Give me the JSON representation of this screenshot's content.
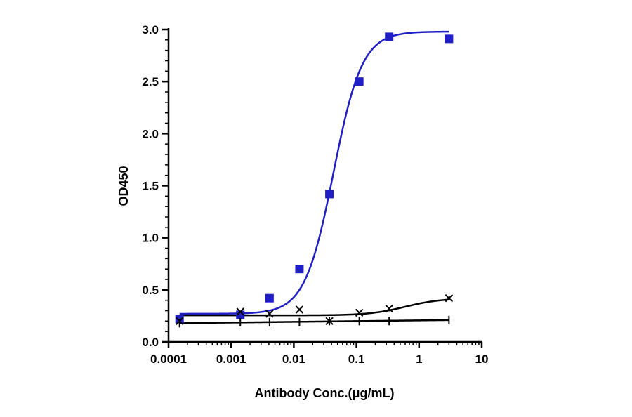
{
  "chart_data": {
    "type": "scatter",
    "title": "",
    "xlabel": "Antibody Conc.(μg/mL)",
    "ylabel": "OD450",
    "xscale": "log",
    "xlim": [
      0.0001,
      10
    ],
    "ylim": [
      0,
      3.0
    ],
    "x_ticks": [
      "0.0001",
      "0.001",
      "0.01",
      "0.1",
      "1",
      "10"
    ],
    "y_ticks": [
      "0.0",
      "0.5",
      "1.0",
      "1.5",
      "2.0",
      "2.5",
      "3.0"
    ],
    "grid": false,
    "legend": "none",
    "series": [
      {
        "marker": "square",
        "color": "#1f1fc4",
        "x": [
          0.00015,
          0.0014,
          0.0041,
          0.0123,
          0.037,
          0.111,
          0.333,
          3.0
        ],
        "y": [
          0.22,
          0.26,
          0.42,
          0.7,
          1.42,
          2.5,
          2.93,
          2.91
        ],
        "fit": {
          "model": "4PL",
          "bottom": 0.27,
          "top": 2.98,
          "ec50": 0.043,
          "hill": 1.9
        }
      },
      {
        "marker": "cross",
        "color": "#000000",
        "x": [
          0.00015,
          0.0014,
          0.0041,
          0.0123,
          0.037,
          0.111,
          0.333,
          3.0
        ],
        "y": [
          0.2,
          0.29,
          0.27,
          0.31,
          0.2,
          0.28,
          0.32,
          0.42
        ],
        "fit": {
          "model": "4PL",
          "bottom": 0.255,
          "top": 0.42,
          "ec50": 0.6,
          "hill": 1.5
        }
      },
      {
        "marker": "tick",
        "color": "#000000",
        "x": [
          0.00015,
          0.0014,
          0.0041,
          0.0123,
          0.037,
          0.111,
          0.333,
          3.0
        ],
        "y": [
          0.18,
          0.19,
          0.19,
          0.19,
          0.2,
          0.2,
          0.2,
          0.21
        ],
        "fit": {
          "model": "linear-log",
          "start": 0.18,
          "end": 0.21
        }
      }
    ]
  }
}
